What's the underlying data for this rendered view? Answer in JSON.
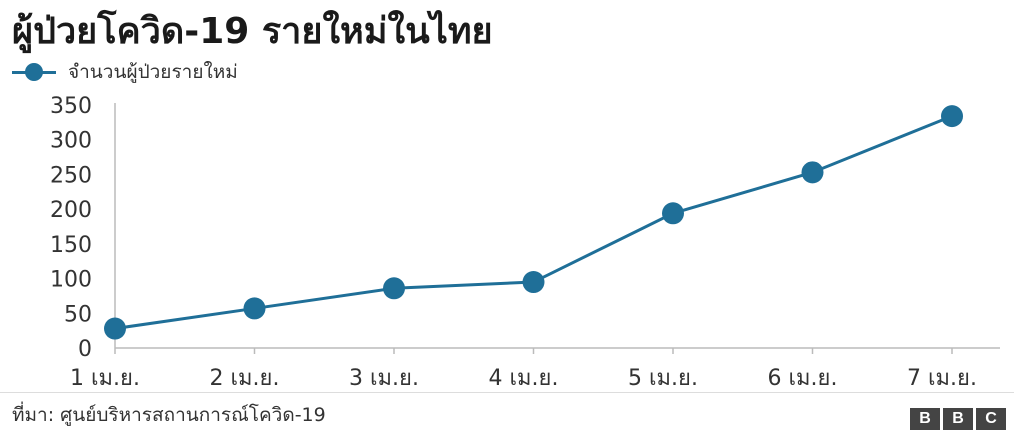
{
  "title": "ผู้ป่วยโควิด-19 รายใหม่ในไทย",
  "legend_label": "จำนวนผู้ป่วยรายใหม่",
  "source": "ที่มา: ศูนย์บริหารสถานการณ์โควิด-19",
  "logo": [
    "B",
    "B",
    "C"
  ],
  "chart_data": {
    "type": "line",
    "categories": [
      "1 เม.ย.",
      "2 เม.ย.",
      "3 เม.ย.",
      "4 เม.ย.",
      "5 เม.ย.",
      "6 เม.ย.",
      "7 เม.ย."
    ],
    "series": [
      {
        "name": "จำนวนผู้ป่วยรายใหม่",
        "values": [
          28,
          57,
          86,
          95,
          194,
          253,
          334
        ],
        "color": "#1f6f98"
      }
    ],
    "ylim": [
      0,
      350
    ],
    "yticks": [
      0,
      50,
      100,
      150,
      200,
      250,
      300,
      350
    ],
    "grid": false,
    "legend": "top-left"
  }
}
